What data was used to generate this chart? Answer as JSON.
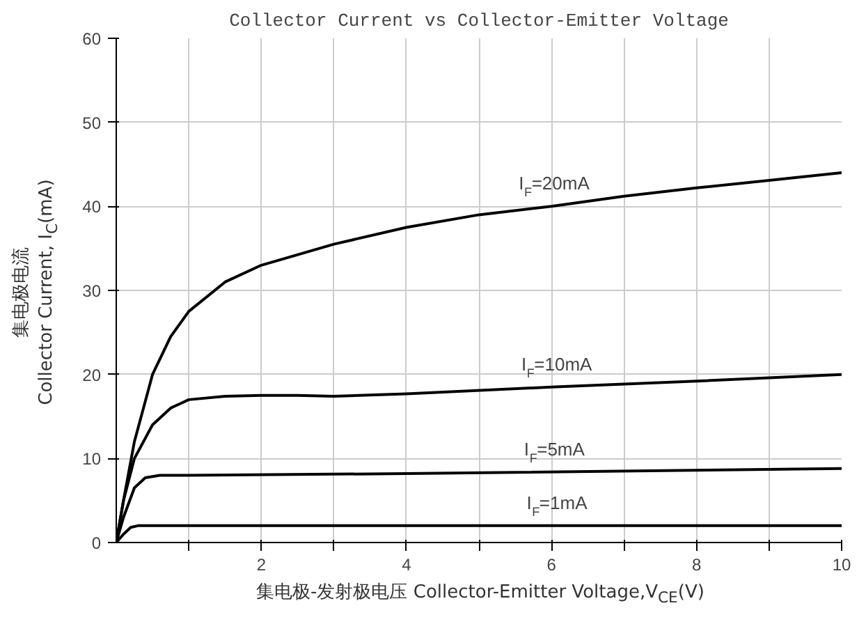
{
  "chart_data": {
    "type": "line",
    "title": "Collector Current vs Collector-Emitter Voltage",
    "xlabel": "集电极-发射极电压 Collector-Emitter Voltage,V$_{CE}$(V)",
    "ylabel": "集电极电流\nCollector Current, I$_{C}$(mA)",
    "xlim": [
      0,
      10
    ],
    "ylim": [
      0,
      60
    ],
    "xticks": [
      {
        "value": 1,
        "label": null
      },
      2,
      {
        "value": 3,
        "label": null
      },
      4,
      {
        "value": 5,
        "label": null
      },
      6,
      {
        "value": 7,
        "label": null
      },
      8,
      {
        "value": 9,
        "label": null
      },
      10
    ],
    "yticks": [
      0,
      10,
      20,
      30,
      40,
      50,
      60
    ],
    "grid": true,
    "line_style": "solid",
    "marker": "none",
    "series": [
      {
        "color": "#000000",
        "x": [
          0,
          0.1,
          0.25,
          0.5,
          0.75,
          1,
          1.5,
          2,
          3,
          4,
          5,
          6,
          7,
          8,
          9,
          10
        ],
        "values": [
          0,
          5,
          12,
          20,
          24.5,
          27.5,
          31,
          33,
          35.5,
          37.5,
          39,
          40,
          41.2,
          42.2,
          43.1,
          44
        ]
      },
      {
        "color": "#000000",
        "x": [
          0,
          0.1,
          0.25,
          0.5,
          0.75,
          1,
          1.5,
          2,
          2.5,
          3,
          4,
          6,
          8,
          10
        ],
        "values": [
          0,
          5,
          10,
          14,
          16,
          17,
          17.4,
          17.5,
          17.5,
          17.4,
          17.7,
          18.5,
          19.2,
          20
        ]
      },
      {
        "color": "#000000",
        "x": [
          0,
          0.1,
          0.25,
          0.4,
          0.6,
          1,
          4,
          10
        ],
        "values": [
          0,
          3,
          6.5,
          7.7,
          8,
          8,
          8.2,
          8.8
        ]
      },
      {
        "color": "#000000",
        "x": [
          0,
          0.1,
          0.2,
          0.3,
          10
        ],
        "values": [
          0,
          1,
          1.8,
          2,
          2
        ]
      }
    ],
    "annotations": [
      "I$_{F}$=20mA",
      "I$_{F}$=10mA",
      "I$_{F}$=5mA",
      "I$_{F}$=1mA"
    ]
  }
}
